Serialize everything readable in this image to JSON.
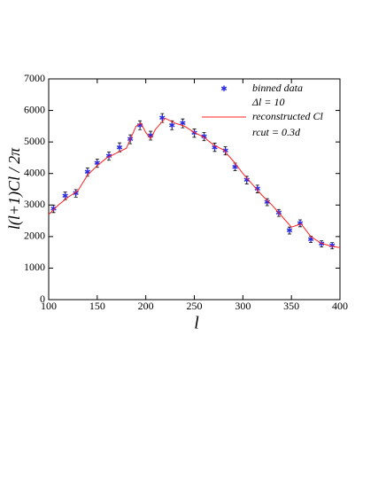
{
  "chart_data": {
    "type": "scatter",
    "x_label": "l",
    "y_label": "l(l+1)Cl / 2π",
    "annotations": [
      "Δl = 10",
      "rcut = 0.3d"
    ],
    "xlim": [
      100,
      400
    ],
    "xticks": [
      100,
      150,
      200,
      250,
      300,
      350,
      400
    ],
    "ylim": [
      0,
      7000
    ],
    "yticks": [
      0,
      1000,
      2000,
      3000,
      4000,
      5000,
      6000,
      7000
    ],
    "series": [
      {
        "name": "binned data",
        "color": "#2a2ae0",
        "marker": "star",
        "x": [
          105,
          117,
          128,
          140,
          150,
          162,
          173,
          184,
          194,
          205,
          217,
          227,
          238,
          250,
          260,
          271,
          282,
          292,
          304,
          315,
          325,
          337,
          348,
          359,
          370,
          381,
          392
        ],
        "values": [
          2880,
          3290,
          3370,
          4045,
          4325,
          4550,
          4830,
          5085,
          5530,
          5200,
          5760,
          5530,
          5590,
          5280,
          5170,
          4830,
          4720,
          4210,
          3790,
          3510,
          3090,
          2750,
          2190,
          2420,
          1910,
          1770,
          1710
        ],
        "errors": [
          120,
          120,
          120,
          130,
          130,
          130,
          140,
          140,
          140,
          140,
          140,
          140,
          140,
          130,
          130,
          130,
          130,
          120,
          120,
          120,
          110,
          110,
          110,
          110,
          100,
          100,
          100
        ]
      },
      {
        "name": "reconstructed Cl",
        "color": "#ff2020",
        "line": true,
        "x": [
          100,
          110,
          120,
          130,
          140,
          150,
          160,
          170,
          180,
          190,
          195,
          200,
          205,
          210,
          220,
          230,
          240,
          250,
          260,
          270,
          280,
          290,
          300,
          310,
          320,
          330,
          340,
          350,
          360,
          370,
          380,
          390,
          400
        ],
        "values": [
          2700,
          3000,
          3250,
          3450,
          3950,
          4250,
          4500,
          4650,
          4800,
          5500,
          5600,
          5300,
          5100,
          5400,
          5750,
          5600,
          5500,
          5300,
          5150,
          4900,
          4750,
          4400,
          4000,
          3650,
          3300,
          3000,
          2650,
          2300,
          2400,
          2000,
          1800,
          1700,
          1650
        ]
      }
    ]
  }
}
